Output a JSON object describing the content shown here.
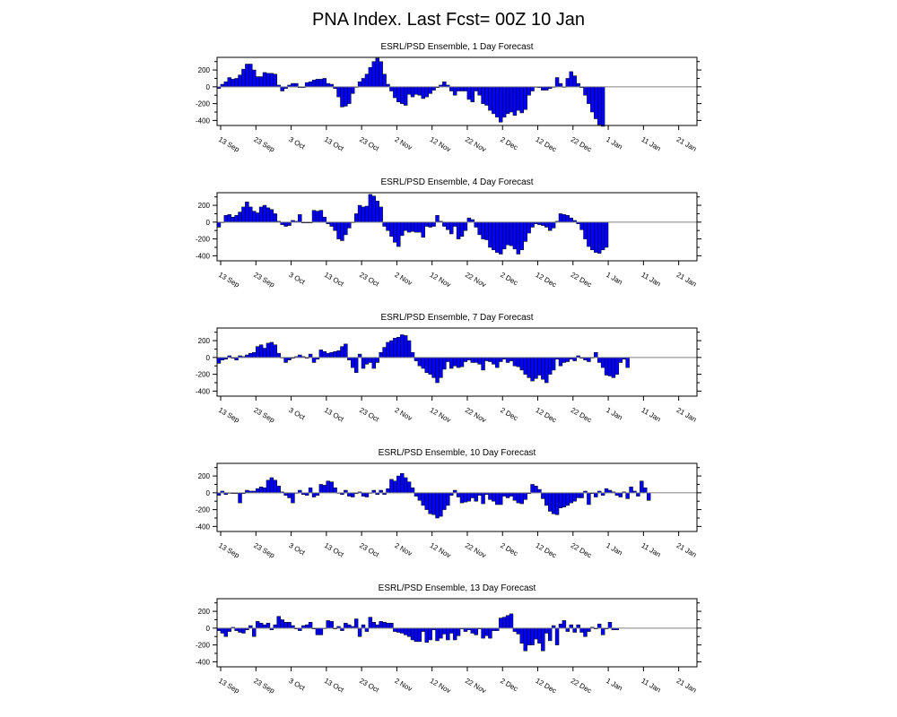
{
  "title": "PNA Index. Last Fcst= 00Z 10 Jan",
  "colors": {
    "bar_fill": "#0000ff",
    "bar_edge": "#000000",
    "zero_line": "#808080",
    "frame": "#000000"
  },
  "chart_data": [
    {
      "type": "bar",
      "title": "ESRL/PSD Ensemble, 1 Day Forecast",
      "x_start": "12 Sep",
      "x_end": "25 Jan",
      "xtick_labels": [
        "13 Sep",
        "23 Sep",
        "3 Oct",
        "13 Oct",
        "23 Oct",
        "2 Nov",
        "12 Nov",
        "22 Nov",
        "2 Dec",
        "12 Dec",
        "22 Dec",
        "1 Jan",
        "11 Jan",
        "21 Jan"
      ],
      "ytick_labels": [
        "200",
        "0",
        "-200",
        "-400"
      ],
      "ylim": [
        -460,
        350
      ],
      "values": [
        -20,
        30,
        60,
        110,
        90,
        100,
        140,
        210,
        270,
        270,
        200,
        120,
        120,
        170,
        160,
        160,
        150,
        20,
        -50,
        -20,
        20,
        40,
        40,
        -10,
        -10,
        50,
        60,
        80,
        90,
        90,
        100,
        40,
        30,
        -20,
        -120,
        -240,
        -230,
        -200,
        -80,
        0,
        60,
        100,
        150,
        230,
        300,
        340,
        300,
        150,
        30,
        -50,
        -130,
        -180,
        -200,
        -220,
        -90,
        -120,
        -90,
        -100,
        -140,
        -120,
        -80,
        -40,
        -10,
        20,
        60,
        20,
        -50,
        -100,
        -50,
        -50,
        -50,
        -150,
        -180,
        -50,
        -100,
        -200,
        -220,
        -280,
        -320,
        -360,
        -420,
        -360,
        -320,
        -300,
        -340,
        -280,
        -310,
        -270,
        -100,
        -50,
        0,
        -10,
        -40,
        -40,
        -20,
        0,
        110,
        40,
        0,
        100,
        180,
        130,
        40,
        -10,
        -100,
        -200,
        -300,
        -380,
        -450,
        -470
      ]
    },
    {
      "type": "bar",
      "title": "ESRL/PSD Ensemble, 4 Day Forecast",
      "x_start": "12 Sep",
      "x_end": "25 Jan",
      "xtick_labels": [
        "13 Sep",
        "23 Sep",
        "3 Oct",
        "13 Oct",
        "23 Oct",
        "2 Nov",
        "12 Nov",
        "22 Nov",
        "2 Dec",
        "12 Dec",
        "22 Dec",
        "1 Jan",
        "11 Jan",
        "21 Jan"
      ],
      "ytick_labels": [
        "200",
        "0",
        "-200",
        "-400"
      ],
      "ylim": [
        -460,
        350
      ],
      "values": [
        -60,
        0,
        80,
        90,
        60,
        80,
        120,
        180,
        240,
        180,
        130,
        110,
        180,
        200,
        170,
        150,
        100,
        10,
        -30,
        -50,
        -40,
        20,
        10,
        90,
        -10,
        -10,
        -10,
        140,
        130,
        140,
        60,
        -20,
        -50,
        -100,
        -200,
        -220,
        -150,
        -70,
        0,
        100,
        200,
        180,
        190,
        330,
        310,
        250,
        180,
        -50,
        -100,
        -170,
        -240,
        -290,
        -160,
        -100,
        -120,
        -110,
        -120,
        -120,
        -180,
        -50,
        -60,
        -50,
        80,
        10,
        -50,
        -90,
        -140,
        -50,
        -200,
        -170,
        -100,
        50,
        30,
        -60,
        -150,
        -200,
        -210,
        -300,
        -330,
        -360,
        -380,
        -320,
        -270,
        -280,
        -320,
        -380,
        -330,
        -230,
        -130,
        -60,
        -20,
        -30,
        -40,
        -60,
        -100,
        -70,
        10,
        100,
        90,
        80,
        50,
        20,
        -20,
        -90,
        -200,
        -290,
        -330,
        -360,
        -370,
        -330,
        -300
      ]
    },
    {
      "type": "bar",
      "title": "ESRL/PSD Ensemble, 7 Day Forecast",
      "x_start": "12 Sep",
      "x_end": "25 Jan",
      "xtick_labels": [
        "13 Sep",
        "23 Sep",
        "3 Oct",
        "13 Oct",
        "23 Oct",
        "2 Nov",
        "12 Nov",
        "22 Nov",
        "2 Dec",
        "12 Dec",
        "22 Dec",
        "1 Jan",
        "11 Jan",
        "21 Jan"
      ],
      "ytick_labels": [
        "200",
        "0",
        "-200",
        "-400"
      ],
      "ylim": [
        -460,
        350
      ],
      "values": [
        -70,
        -30,
        -20,
        20,
        -10,
        -30,
        20,
        10,
        30,
        50,
        60,
        130,
        150,
        110,
        170,
        180,
        150,
        50,
        0,
        -60,
        -30,
        -10,
        10,
        30,
        10,
        -10,
        40,
        -60,
        -20,
        90,
        70,
        50,
        60,
        70,
        80,
        130,
        160,
        -30,
        -120,
        -180,
        40,
        -130,
        -80,
        -60,
        -130,
        -60,
        60,
        120,
        180,
        200,
        230,
        240,
        270,
        260,
        200,
        60,
        -40,
        -100,
        -130,
        -180,
        -200,
        -240,
        -300,
        -240,
        -140,
        -50,
        -130,
        -100,
        -120,
        -110,
        -50,
        -30,
        -60,
        -60,
        -80,
        -150,
        -40,
        -50,
        -80,
        -120,
        -50,
        -20,
        -60,
        -40,
        -100,
        -110,
        -150,
        -200,
        -240,
        -280,
        -250,
        -210,
        -260,
        -300,
        -200,
        -150,
        -20,
        -100,
        -60,
        -50,
        -20,
        -40,
        20,
        -10,
        -30,
        -50,
        0,
        60,
        -60,
        -120,
        -210,
        -220,
        -240,
        -200,
        -60,
        -20,
        -120
      ]
    },
    {
      "type": "bar",
      "title": "ESRL/PSD Ensemble, 10 Day Forecast",
      "x_start": "12 Sep",
      "x_end": "25 Jan",
      "xtick_labels": [
        "13 Sep",
        "23 Sep",
        "3 Oct",
        "13 Oct",
        "23 Oct",
        "2 Nov",
        "12 Nov",
        "22 Nov",
        "2 Dec",
        "12 Dec",
        "22 Dec",
        "1 Jan",
        "11 Jan",
        "21 Jan"
      ],
      "ytick_labels": [
        "200",
        "0",
        "-200",
        "-400"
      ],
      "ylim": [
        -460,
        350
      ],
      "values": [
        -30,
        20,
        -20,
        0,
        -10,
        -10,
        -120,
        -10,
        30,
        20,
        20,
        50,
        70,
        60,
        150,
        180,
        150,
        80,
        10,
        -30,
        -60,
        -120,
        0,
        30,
        -20,
        -30,
        60,
        -50,
        -30,
        100,
        90,
        140,
        130,
        60,
        0,
        -20,
        30,
        -40,
        -50,
        -10,
        10,
        -40,
        -50,
        0,
        30,
        -20,
        30,
        -20,
        50,
        160,
        140,
        200,
        230,
        180,
        130,
        60,
        -40,
        -90,
        -150,
        -200,
        -250,
        -260,
        -300,
        -280,
        -200,
        -150,
        -30,
        30,
        -50,
        -120,
        -110,
        -100,
        -60,
        -100,
        -30,
        -130,
        -20,
        -80,
        -100,
        -140,
        -140,
        -40,
        -60,
        -40,
        -90,
        -120,
        -130,
        -80,
        -10,
        100,
        80,
        40,
        -70,
        -150,
        -220,
        -250,
        -260,
        -180,
        -170,
        -150,
        -120,
        -100,
        -60,
        -60,
        20,
        -140,
        -10,
        -50,
        20,
        -30,
        50,
        30,
        10,
        -30,
        -50,
        10,
        -70,
        70,
        20,
        -40,
        140,
        60,
        -90
      ]
    },
    {
      "type": "bar",
      "title": "ESRL/PSD Ensemble, 13 Day Forecast",
      "x_start": "12 Sep",
      "x_end": "25 Jan",
      "xtick_labels": [
        "13 Sep",
        "23 Sep",
        "3 Oct",
        "13 Oct",
        "23 Oct",
        "2 Nov",
        "12 Nov",
        "22 Nov",
        "2 Dec",
        "12 Dec",
        "22 Dec",
        "1 Jan",
        "11 Jan",
        "21 Jan"
      ],
      "ytick_labels": [
        "200",
        "0",
        "-200",
        "-400"
      ],
      "ylim": [
        -460,
        350
      ],
      "values": [
        -30,
        -60,
        -100,
        -40,
        10,
        -30,
        -50,
        -60,
        -20,
        30,
        -100,
        80,
        60,
        40,
        60,
        -20,
        40,
        140,
        100,
        70,
        70,
        30,
        -10,
        -30,
        30,
        40,
        70,
        -10,
        -80,
        -80,
        0,
        90,
        80,
        -10,
        20,
        -30,
        60,
        40,
        20,
        110,
        -100,
        40,
        -40,
        130,
        70,
        40,
        80,
        70,
        60,
        60,
        -40,
        -50,
        -60,
        -80,
        -100,
        -140,
        -160,
        -160,
        -40,
        -170,
        -140,
        -20,
        -150,
        -120,
        -70,
        -140,
        -60,
        -140,
        -90,
        -10,
        -40,
        -20,
        -60,
        -80,
        -10,
        -120,
        -90,
        -120,
        -30,
        -30,
        120,
        130,
        150,
        170,
        -40,
        -70,
        -180,
        -270,
        -200,
        -200,
        -130,
        -180,
        -270,
        -60,
        -150,
        30,
        -200,
        50,
        90,
        -40,
        40,
        -50,
        40,
        -50,
        -100,
        -40,
        10,
        -10,
        50,
        -80,
        -10,
        70,
        -20,
        -20
      ]
    }
  ]
}
